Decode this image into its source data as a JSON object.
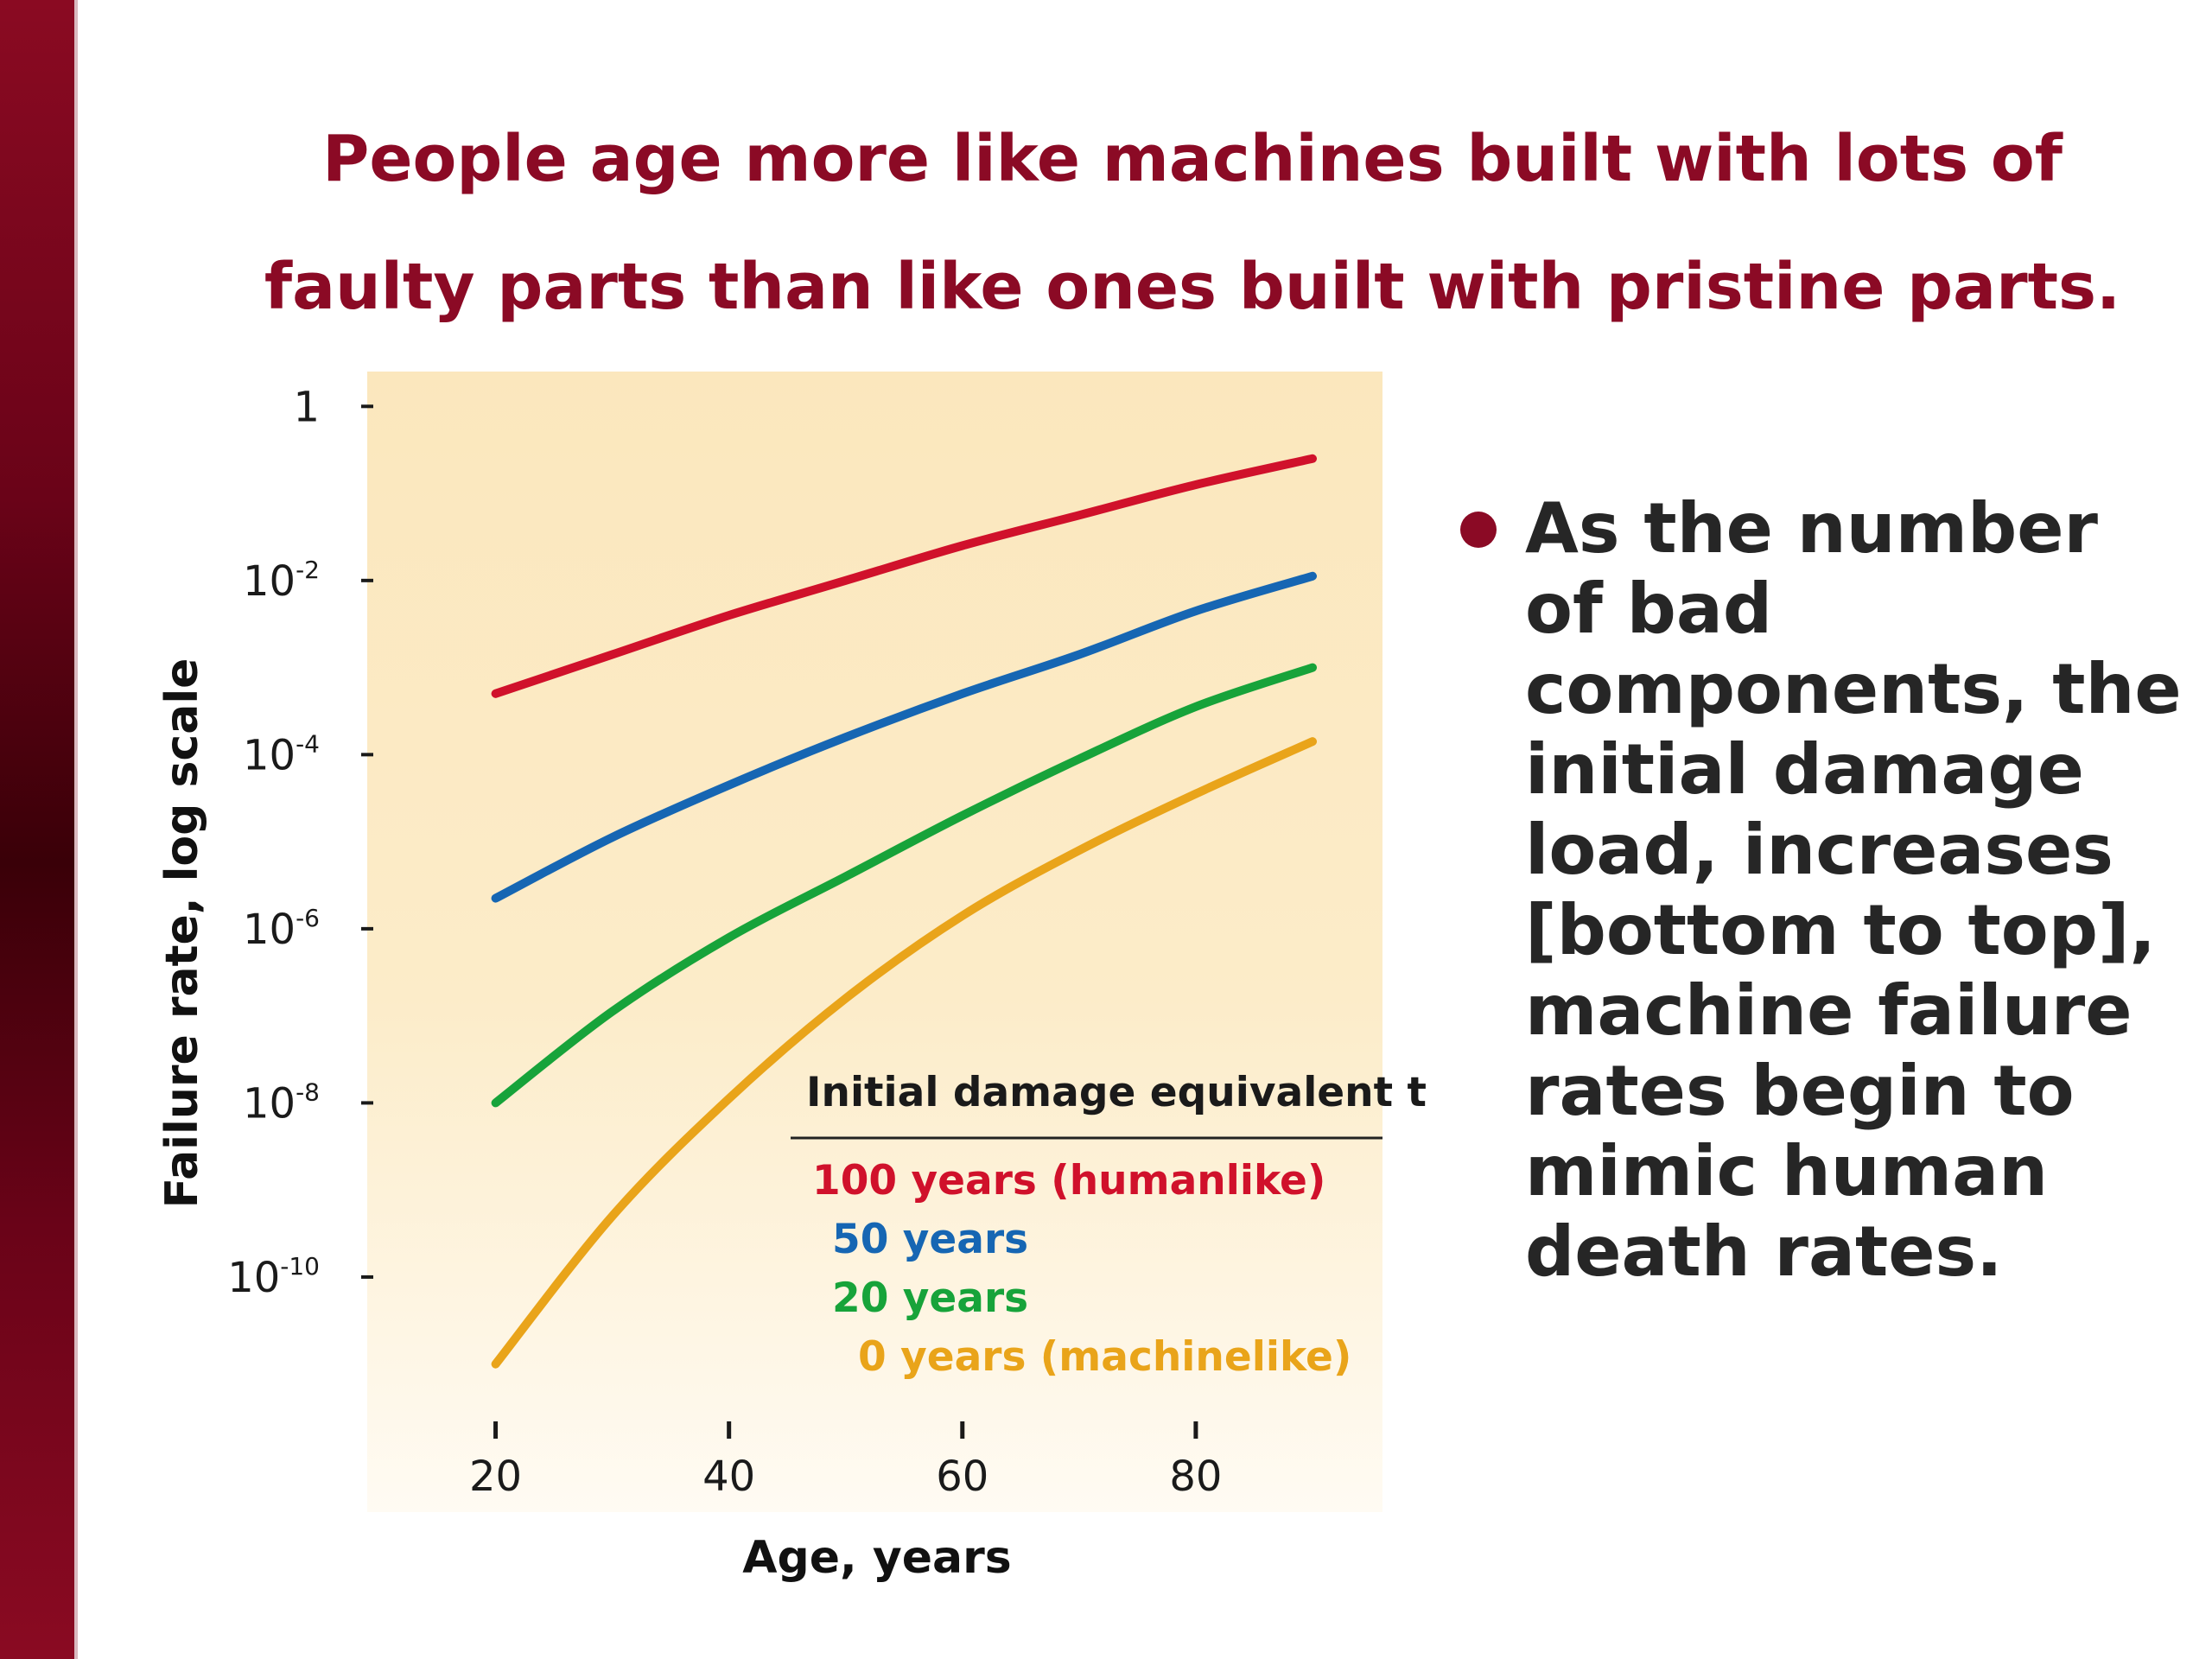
{
  "slide": {
    "title_line1": "People age more like machines built with lots of",
    "title_line2": "faulty parts than like ones built with pristine parts.",
    "bullet_text": "As the number of bad components, the initial damage load, increases [bottom to top], machine failure rates begin to mimic human death rates."
  },
  "colors": {
    "title": "#8b0a25",
    "plot_background": "#fbe7bd"
  },
  "chart_data": {
    "type": "line",
    "xlabel": "Age, years",
    "ylabel": "Failure rate, log scale",
    "log_scale_y": true,
    "xlim": [
      9,
      96
    ],
    "ylim_log10": [
      -12.7,
      0.4
    ],
    "x_ticks": [
      20,
      40,
      60,
      80
    ],
    "y_ticks": [
      {
        "log10": 0,
        "base": "1",
        "exp": ""
      },
      {
        "log10": -2,
        "base": "10",
        "exp": "-2"
      },
      {
        "log10": -4,
        "base": "10",
        "exp": "-4"
      },
      {
        "log10": -6,
        "base": "10",
        "exp": "-6"
      },
      {
        "log10": -8,
        "base": "10",
        "exp": "-8"
      },
      {
        "log10": -10,
        "base": "10",
        "exp": "-10"
      }
    ],
    "legend_title": "Initial damage equivalent to:",
    "legend_position": "bottom-right",
    "series": [
      {
        "name": "100 years (humanlike)",
        "color": "#d0112b",
        "x": [
          20,
          30,
          40,
          50,
          60,
          70,
          80,
          90
        ],
        "log10_y": [
          -3.3,
          -2.85,
          -2.4,
          -2.0,
          -1.6,
          -1.25,
          -0.9,
          -0.6
        ]
      },
      {
        "name": "50 years",
        "color": "#1666b3",
        "x": [
          20,
          30,
          40,
          50,
          60,
          70,
          80,
          90
        ],
        "log10_y": [
          -5.65,
          -4.95,
          -4.35,
          -3.8,
          -3.3,
          -2.85,
          -2.35,
          -1.95
        ]
      },
      {
        "name": "20 years",
        "color": "#17a33a",
        "x": [
          20,
          30,
          40,
          50,
          60,
          70,
          80,
          90
        ],
        "log10_y": [
          -8.0,
          -6.95,
          -6.1,
          -5.4,
          -4.7,
          -4.05,
          -3.45,
          -3.0
        ]
      },
      {
        "name": "0 years (machinelike)",
        "color": "#e9a41a",
        "x": [
          20,
          30,
          40,
          50,
          60,
          70,
          80,
          90
        ],
        "log10_y": [
          -11.0,
          -9.3,
          -7.95,
          -6.8,
          -5.85,
          -5.1,
          -4.45,
          -3.85
        ]
      }
    ]
  }
}
